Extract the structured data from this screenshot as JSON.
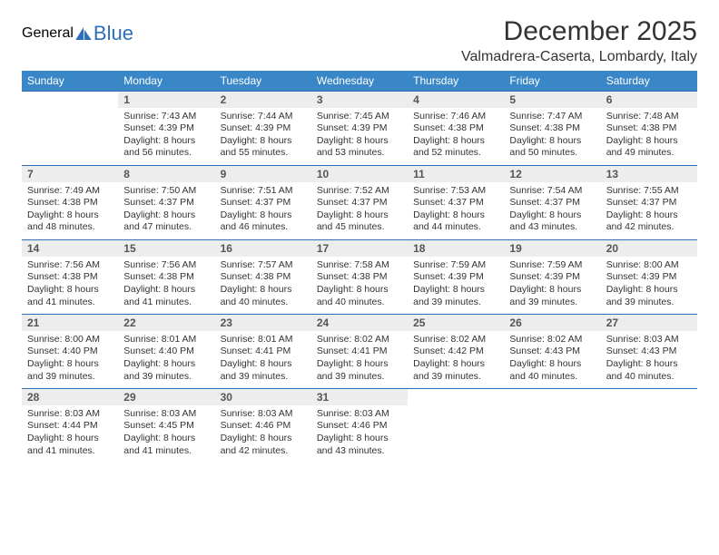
{
  "logo": {
    "part1": "General",
    "part2": "Blue"
  },
  "title": "December 2025",
  "location": "Valmadrera-Caserta, Lombardy, Italy",
  "colors": {
    "header_bg": "#3a87c8",
    "header_text": "#ffffff",
    "rule": "#2d6fb8",
    "daynum_bg": "#ededed",
    "daynum_text": "#555555",
    "body_text": "#333333",
    "logo_gray": "#5a5a5a",
    "logo_blue": "#2d6fb8",
    "page_bg": "#ffffff"
  },
  "typography": {
    "title_fontsize": 30,
    "location_fontsize": 16,
    "weekday_fontsize": 12,
    "daynum_fontsize": 12,
    "cell_fontsize": 10.5
  },
  "weekdays": [
    "Sunday",
    "Monday",
    "Tuesday",
    "Wednesday",
    "Thursday",
    "Friday",
    "Saturday"
  ],
  "weeks": [
    [
      null,
      {
        "n": "1",
        "sunrise": "7:43 AM",
        "sunset": "4:39 PM",
        "daylight": "8 hours and 56 minutes."
      },
      {
        "n": "2",
        "sunrise": "7:44 AM",
        "sunset": "4:39 PM",
        "daylight": "8 hours and 55 minutes."
      },
      {
        "n": "3",
        "sunrise": "7:45 AM",
        "sunset": "4:39 PM",
        "daylight": "8 hours and 53 minutes."
      },
      {
        "n": "4",
        "sunrise": "7:46 AM",
        "sunset": "4:38 PM",
        "daylight": "8 hours and 52 minutes."
      },
      {
        "n": "5",
        "sunrise": "7:47 AM",
        "sunset": "4:38 PM",
        "daylight": "8 hours and 50 minutes."
      },
      {
        "n": "6",
        "sunrise": "7:48 AM",
        "sunset": "4:38 PM",
        "daylight": "8 hours and 49 minutes."
      }
    ],
    [
      {
        "n": "7",
        "sunrise": "7:49 AM",
        "sunset": "4:38 PM",
        "daylight": "8 hours and 48 minutes."
      },
      {
        "n": "8",
        "sunrise": "7:50 AM",
        "sunset": "4:37 PM",
        "daylight": "8 hours and 47 minutes."
      },
      {
        "n": "9",
        "sunrise": "7:51 AM",
        "sunset": "4:37 PM",
        "daylight": "8 hours and 46 minutes."
      },
      {
        "n": "10",
        "sunrise": "7:52 AM",
        "sunset": "4:37 PM",
        "daylight": "8 hours and 45 minutes."
      },
      {
        "n": "11",
        "sunrise": "7:53 AM",
        "sunset": "4:37 PM",
        "daylight": "8 hours and 44 minutes."
      },
      {
        "n": "12",
        "sunrise": "7:54 AM",
        "sunset": "4:37 PM",
        "daylight": "8 hours and 43 minutes."
      },
      {
        "n": "13",
        "sunrise": "7:55 AM",
        "sunset": "4:37 PM",
        "daylight": "8 hours and 42 minutes."
      }
    ],
    [
      {
        "n": "14",
        "sunrise": "7:56 AM",
        "sunset": "4:38 PM",
        "daylight": "8 hours and 41 minutes."
      },
      {
        "n": "15",
        "sunrise": "7:56 AM",
        "sunset": "4:38 PM",
        "daylight": "8 hours and 41 minutes."
      },
      {
        "n": "16",
        "sunrise": "7:57 AM",
        "sunset": "4:38 PM",
        "daylight": "8 hours and 40 minutes."
      },
      {
        "n": "17",
        "sunrise": "7:58 AM",
        "sunset": "4:38 PM",
        "daylight": "8 hours and 40 minutes."
      },
      {
        "n": "18",
        "sunrise": "7:59 AM",
        "sunset": "4:39 PM",
        "daylight": "8 hours and 39 minutes."
      },
      {
        "n": "19",
        "sunrise": "7:59 AM",
        "sunset": "4:39 PM",
        "daylight": "8 hours and 39 minutes."
      },
      {
        "n": "20",
        "sunrise": "8:00 AM",
        "sunset": "4:39 PM",
        "daylight": "8 hours and 39 minutes."
      }
    ],
    [
      {
        "n": "21",
        "sunrise": "8:00 AM",
        "sunset": "4:40 PM",
        "daylight": "8 hours and 39 minutes."
      },
      {
        "n": "22",
        "sunrise": "8:01 AM",
        "sunset": "4:40 PM",
        "daylight": "8 hours and 39 minutes."
      },
      {
        "n": "23",
        "sunrise": "8:01 AM",
        "sunset": "4:41 PM",
        "daylight": "8 hours and 39 minutes."
      },
      {
        "n": "24",
        "sunrise": "8:02 AM",
        "sunset": "4:41 PM",
        "daylight": "8 hours and 39 minutes."
      },
      {
        "n": "25",
        "sunrise": "8:02 AM",
        "sunset": "4:42 PM",
        "daylight": "8 hours and 39 minutes."
      },
      {
        "n": "26",
        "sunrise": "8:02 AM",
        "sunset": "4:43 PM",
        "daylight": "8 hours and 40 minutes."
      },
      {
        "n": "27",
        "sunrise": "8:03 AM",
        "sunset": "4:43 PM",
        "daylight": "8 hours and 40 minutes."
      }
    ],
    [
      {
        "n": "28",
        "sunrise": "8:03 AM",
        "sunset": "4:44 PM",
        "daylight": "8 hours and 41 minutes."
      },
      {
        "n": "29",
        "sunrise": "8:03 AM",
        "sunset": "4:45 PM",
        "daylight": "8 hours and 41 minutes."
      },
      {
        "n": "30",
        "sunrise": "8:03 AM",
        "sunset": "4:46 PM",
        "daylight": "8 hours and 42 minutes."
      },
      {
        "n": "31",
        "sunrise": "8:03 AM",
        "sunset": "4:46 PM",
        "daylight": "8 hours and 43 minutes."
      },
      null,
      null,
      null
    ]
  ],
  "labels": {
    "sunrise": "Sunrise:",
    "sunset": "Sunset:",
    "daylight": "Daylight:"
  }
}
